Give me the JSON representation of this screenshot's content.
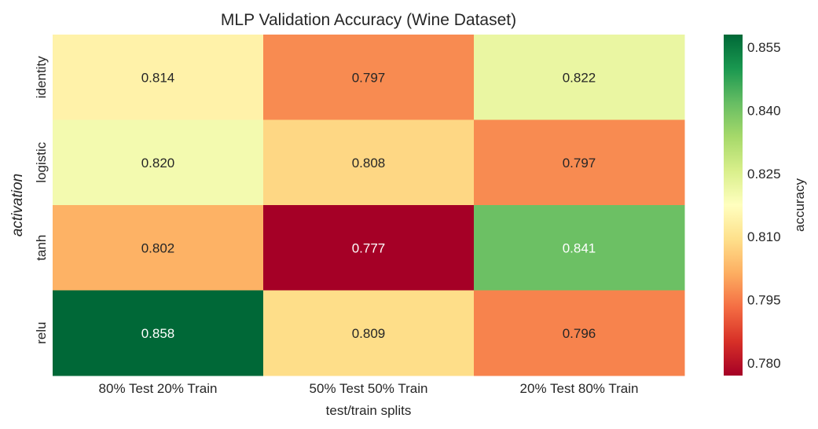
{
  "chart_data": {
    "type": "heatmap",
    "title": "MLP Validation Accuracy (Wine Dataset)",
    "xlabel": "test/train splits",
    "ylabel": "activation",
    "x_categories": [
      "80% Test 20% Train",
      "50% Test 50% Train",
      "20% Test 80% Train"
    ],
    "y_categories": [
      "identity",
      "logistic",
      "tanh",
      "relu"
    ],
    "values": [
      [
        0.814,
        0.797,
        0.822
      ],
      [
        0.82,
        0.808,
        0.797
      ],
      [
        0.802,
        0.777,
        0.841
      ],
      [
        0.858,
        0.809,
        0.796
      ]
    ],
    "cell_labels": [
      [
        "0.814",
        "0.797",
        "0.822"
      ],
      [
        "0.820",
        "0.808",
        "0.797"
      ],
      [
        "0.802",
        "0.777",
        "0.841"
      ],
      [
        "0.858",
        "0.809",
        "0.796"
      ]
    ],
    "colorbar": {
      "label": "accuracy",
      "colormap": "RdYlGn",
      "range": [
        0.777,
        0.858
      ],
      "ticks": [
        0.78,
        0.795,
        0.81,
        0.825,
        0.84,
        0.855
      ],
      "tick_labels": [
        "0.780",
        "0.795",
        "0.810",
        "0.825",
        "0.840",
        "0.855"
      ]
    },
    "colors": {
      "light_text": "#ffffff",
      "dark_text": "#262626",
      "axis_text": "#262626"
    }
  }
}
